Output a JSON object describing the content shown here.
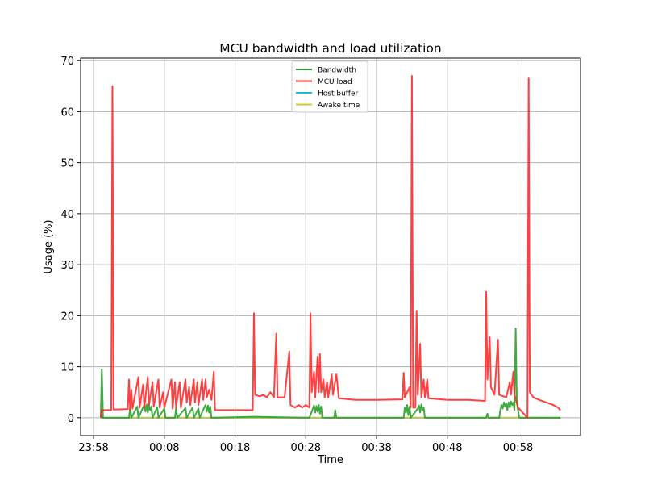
{
  "chart_data": {
    "type": "line",
    "title": "MCU bandwidth and load utilization",
    "xlabel": "Time",
    "ylabel": "Usage (%)",
    "x_unit": "clock time (HH:MM)",
    "xlim": [
      "23:56:10",
      "01:06:50"
    ],
    "ylim": [
      -3.5,
      70.5
    ],
    "x_ticks": [
      "23:58",
      "00:08",
      "00:18",
      "00:28",
      "00:38",
      "00:48",
      "00:58"
    ],
    "y_ticks": [
      0,
      10,
      20,
      30,
      40,
      50,
      60,
      70
    ],
    "grid": true,
    "legend_position": "top-center",
    "series": [
      {
        "name": "Bandwidth",
        "color": "#2ca02c",
        "points": [
          [
            "23:59:00",
            0
          ],
          [
            "23:59:10",
            9.5
          ],
          [
            "23:59:20",
            0
          ],
          [
            "00:03:00",
            0
          ],
          [
            "00:03:10",
            2.0
          ],
          [
            "00:03:20",
            0
          ],
          [
            "00:04:10",
            2.2
          ],
          [
            "00:04:20",
            0
          ],
          [
            "00:05:00",
            2.0
          ],
          [
            "00:05:10",
            2.5
          ],
          [
            "00:05:20",
            1.2
          ],
          [
            "00:05:30",
            2.6
          ],
          [
            "00:05:40",
            1.0
          ],
          [
            "00:05:50",
            2.4
          ],
          [
            "00:06:00",
            1.5
          ],
          [
            "00:06:10",
            2.2
          ],
          [
            "00:06:20",
            0
          ],
          [
            "00:07:00",
            2.1
          ],
          [
            "00:07:10",
            0
          ],
          [
            "00:08:00",
            1.8
          ],
          [
            "00:08:10",
            0
          ],
          [
            "00:09:30",
            0
          ],
          [
            "00:09:40",
            2.0
          ],
          [
            "00:09:50",
            0
          ],
          [
            "00:11:00",
            1.9
          ],
          [
            "00:11:10",
            0
          ],
          [
            "00:12:00",
            2.0
          ],
          [
            "00:12:10",
            0
          ],
          [
            "00:12:50",
            1.8
          ],
          [
            "00:13:00",
            0
          ],
          [
            "00:13:40",
            2.1
          ],
          [
            "00:13:50",
            2.5
          ],
          [
            "00:14:00",
            1.2
          ],
          [
            "00:14:10",
            2.4
          ],
          [
            "00:14:20",
            1.0
          ],
          [
            "00:14:30",
            2.2
          ],
          [
            "00:14:40",
            0
          ],
          [
            "00:20:40",
            0.2
          ],
          [
            "00:28:30",
            0
          ],
          [
            "00:29:00",
            1.8
          ],
          [
            "00:29:10",
            2.4
          ],
          [
            "00:29:20",
            1.0
          ],
          [
            "00:29:30",
            2.3
          ],
          [
            "00:29:40",
            1.2
          ],
          [
            "00:29:50",
            2.5
          ],
          [
            "00:30:00",
            0.8
          ],
          [
            "00:30:10",
            2.2
          ],
          [
            "00:30:20",
            0
          ],
          [
            "00:32:00",
            0
          ],
          [
            "00:32:10",
            1.5
          ],
          [
            "00:32:20",
            0
          ],
          [
            "00:41:50",
            0
          ],
          [
            "00:42:00",
            2.0
          ],
          [
            "00:42:10",
            1.0
          ],
          [
            "00:42:20",
            2.5
          ],
          [
            "00:42:30",
            0.5
          ],
          [
            "00:42:40",
            2.2
          ],
          [
            "00:42:50",
            0
          ],
          [
            "00:43:50",
            1.8
          ],
          [
            "00:44:00",
            2.4
          ],
          [
            "00:44:10",
            1.0
          ],
          [
            "00:44:20",
            2.6
          ],
          [
            "00:44:30",
            1.5
          ],
          [
            "00:44:40",
            2.0
          ],
          [
            "00:44:50",
            0
          ],
          [
            "00:53:30",
            0
          ],
          [
            "00:53:40",
            0.8
          ],
          [
            "00:53:50",
            0
          ],
          [
            "00:55:20",
            0
          ],
          [
            "00:55:30",
            1.5
          ],
          [
            "00:55:40",
            2.5
          ],
          [
            "00:55:50",
            1.8
          ],
          [
            "00:56:00",
            3.0
          ],
          [
            "00:56:10",
            2.2
          ],
          [
            "00:56:20",
            2.8
          ],
          [
            "00:56:30",
            1.5
          ],
          [
            "00:56:40",
            3.0
          ],
          [
            "00:56:50",
            2.0
          ],
          [
            "00:57:00",
            3.2
          ],
          [
            "00:57:10",
            2.5
          ],
          [
            "00:57:20",
            3.0
          ],
          [
            "00:57:30",
            1.5
          ],
          [
            "00:57:40",
            17.5
          ],
          [
            "00:57:50",
            3.0
          ],
          [
            "00:58:00",
            1.5
          ],
          [
            "00:58:10",
            0
          ],
          [
            "01:04:00",
            0
          ]
        ]
      },
      {
        "name": "MCU load",
        "color": "#ff2b2b",
        "points": [
          [
            "23:59:00",
            0
          ],
          [
            "23:59:10",
            1.5
          ],
          [
            "00:00:30",
            1.5
          ],
          [
            "00:00:40",
            65
          ],
          [
            "00:00:50",
            1.6
          ],
          [
            "00:02:50",
            1.7
          ],
          [
            "00:03:00",
            7.5
          ],
          [
            "00:03:10",
            1.5
          ],
          [
            "00:03:20",
            5.5
          ],
          [
            "00:03:30",
            1.8
          ],
          [
            "00:04:20",
            8.0
          ],
          [
            "00:04:30",
            2.0
          ],
          [
            "00:05:00",
            6.5
          ],
          [
            "00:05:10",
            2.0
          ],
          [
            "00:05:40",
            8.0
          ],
          [
            "00:05:50",
            2.5
          ],
          [
            "00:06:20",
            7.0
          ],
          [
            "00:06:30",
            2.2
          ],
          [
            "00:07:10",
            7.5
          ],
          [
            "00:07:20",
            2.0
          ],
          [
            "00:07:50",
            5.0
          ],
          [
            "00:08:00",
            2.0
          ],
          [
            "00:09:00",
            7.5
          ],
          [
            "00:09:10",
            1.8
          ],
          [
            "00:09:30",
            7.0
          ],
          [
            "00:09:40",
            2.0
          ],
          [
            "00:10:10",
            7.0
          ],
          [
            "00:10:20",
            2.0
          ],
          [
            "00:11:00",
            7.5
          ],
          [
            "00:11:10",
            3.0
          ],
          [
            "00:11:30",
            6.0
          ],
          [
            "00:11:40",
            2.5
          ],
          [
            "00:12:10",
            7.5
          ],
          [
            "00:12:20",
            3.0
          ],
          [
            "00:12:40",
            7.0
          ],
          [
            "00:12:50",
            2.5
          ],
          [
            "00:13:20",
            7.5
          ],
          [
            "00:13:30",
            3.5
          ],
          [
            "00:13:50",
            7.5
          ],
          [
            "00:14:00",
            4.0
          ],
          [
            "00:14:20",
            5.5
          ],
          [
            "00:14:40",
            3.5
          ],
          [
            "00:15:00",
            9.0
          ],
          [
            "00:15:10",
            1.5
          ],
          [
            "00:20:30",
            1.5
          ],
          [
            "00:20:40",
            20.5
          ],
          [
            "00:20:50",
            4.5
          ],
          [
            "00:21:30",
            4.2
          ],
          [
            "00:22:00",
            4.5
          ],
          [
            "00:22:30",
            4.0
          ],
          [
            "00:23:00",
            5.0
          ],
          [
            "00:23:30",
            4.0
          ],
          [
            "00:23:50",
            16.5
          ],
          [
            "00:24:00",
            4.0
          ],
          [
            "00:25:00",
            4.0
          ],
          [
            "00:25:40",
            13.0
          ],
          [
            "00:25:50",
            2.5
          ],
          [
            "00:26:30",
            2.0
          ],
          [
            "00:27:00",
            2.5
          ],
          [
            "00:27:30",
            2.0
          ],
          [
            "00:28:00",
            2.5
          ],
          [
            "00:28:30",
            2.0
          ],
          [
            "00:28:40",
            20.5
          ],
          [
            "00:28:50",
            5.0
          ],
          [
            "00:29:10",
            9.0
          ],
          [
            "00:29:20",
            4.0
          ],
          [
            "00:29:40",
            12.0
          ],
          [
            "00:29:50",
            5.0
          ],
          [
            "00:30:00",
            12.5
          ],
          [
            "00:30:10",
            5.0
          ],
          [
            "00:30:30",
            7.5
          ],
          [
            "00:30:40",
            4.0
          ],
          [
            "00:31:00",
            7.0
          ],
          [
            "00:31:10",
            4.0
          ],
          [
            "00:31:40",
            8.5
          ],
          [
            "00:31:50",
            4.5
          ],
          [
            "00:32:20",
            8.5
          ],
          [
            "00:32:40",
            3.8
          ],
          [
            "00:35:00",
            3.5
          ],
          [
            "00:38:00",
            3.5
          ],
          [
            "00:41:40",
            3.6
          ],
          [
            "00:41:50",
            8.8
          ],
          [
            "00:42:00",
            4.0
          ],
          [
            "00:42:40",
            6.0
          ],
          [
            "00:42:50",
            2.0
          ],
          [
            "00:43:00",
            67
          ],
          [
            "00:43:10",
            2.0
          ],
          [
            "00:43:30",
            2.0
          ],
          [
            "00:43:40",
            21.0
          ],
          [
            "00:43:50",
            4.5
          ],
          [
            "00:44:10",
            14.5
          ],
          [
            "00:44:20",
            4.0
          ],
          [
            "00:44:40",
            7.5
          ],
          [
            "00:44:50",
            4.0
          ],
          [
            "00:45:10",
            7.5
          ],
          [
            "00:45:20",
            3.8
          ],
          [
            "00:48:00",
            3.5
          ],
          [
            "00:51:00",
            3.5
          ],
          [
            "00:53:20",
            3.3
          ],
          [
            "00:53:30",
            24.7
          ],
          [
            "00:53:40",
            7.5
          ],
          [
            "00:54:00",
            15.8
          ],
          [
            "00:54:10",
            6.0
          ],
          [
            "00:54:40",
            4.5
          ],
          [
            "00:55:10",
            15.3
          ],
          [
            "00:55:20",
            4.5
          ],
          [
            "00:56:20",
            4.0
          ],
          [
            "00:56:50",
            7.0
          ],
          [
            "00:57:00",
            4.5
          ],
          [
            "00:57:20",
            9.0
          ],
          [
            "00:57:30",
            4.5
          ],
          [
            "00:58:00",
            2.0
          ],
          [
            "00:59:20",
            0
          ],
          [
            "00:59:30",
            66.5
          ],
          [
            "00:59:40",
            5.0
          ],
          [
            "01:00:10",
            4.0
          ],
          [
            "01:01:00",
            3.5
          ],
          [
            "01:02:00",
            3.0
          ],
          [
            "01:03:00",
            2.5
          ],
          [
            "01:03:40",
            2.0
          ],
          [
            "01:04:00",
            1.5
          ]
        ]
      },
      {
        "name": "Host buffer",
        "color": "#17becf",
        "points": [
          [
            "23:59:00",
            0
          ],
          [
            "01:04:00",
            0
          ]
        ]
      },
      {
        "name": "Awake time",
        "color": "#d4c832",
        "points": [
          [
            "23:59:00",
            0
          ],
          [
            "01:04:00",
            0
          ]
        ]
      }
    ]
  }
}
